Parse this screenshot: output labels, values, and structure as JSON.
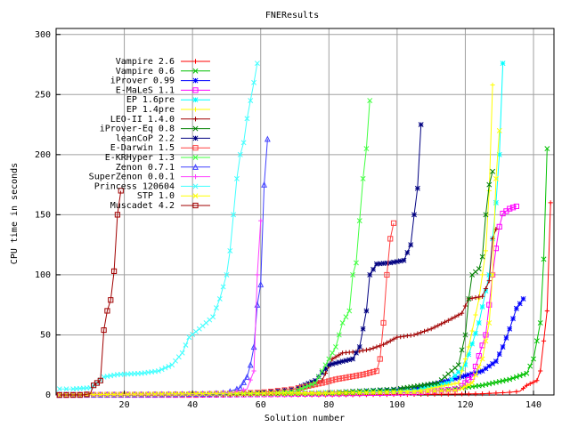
{
  "chart_data": {
    "type": "line",
    "title": "FNEResults",
    "xlabel": "Solution number",
    "ylabel": "CPU time in seconds",
    "xlim": [
      0,
      146
    ],
    "ylim": [
      0,
      305
    ],
    "xticks": [
      20,
      40,
      60,
      80,
      100,
      120,
      140
    ],
    "yticks": [
      0,
      50,
      100,
      150,
      200,
      250,
      300
    ],
    "grid": true,
    "legend_position": "top-left",
    "series": [
      {
        "name": "Vampire 2.6",
        "color": "#ff0000",
        "marker": "plus",
        "points": [
          [
            1,
            0
          ],
          [
            40,
            0
          ],
          [
            80,
            0
          ],
          [
            110,
            0.5
          ],
          [
            125,
            1
          ],
          [
            132,
            2
          ],
          [
            136,
            3
          ],
          [
            138,
            8
          ],
          [
            141,
            12
          ],
          [
            142,
            20
          ],
          [
            143,
            45
          ],
          [
            144,
            70
          ],
          [
            145,
            160
          ]
        ]
      },
      {
        "name": "Vampire 0.6",
        "color": "#00c000",
        "marker": "cross",
        "points": [
          [
            1,
            0
          ],
          [
            40,
            0.5
          ],
          [
            80,
            1
          ],
          [
            110,
            3
          ],
          [
            125,
            8
          ],
          [
            133,
            13
          ],
          [
            138,
            18
          ],
          [
            140,
            30
          ],
          [
            142,
            60
          ],
          [
            143,
            113
          ],
          [
            144,
            205
          ]
        ]
      },
      {
        "name": "iProver 0.99",
        "color": "#0000ff",
        "marker": "star",
        "points": [
          [
            1,
            0
          ],
          [
            40,
            0.5
          ],
          [
            80,
            2
          ],
          [
            105,
            5
          ],
          [
            115,
            12
          ],
          [
            125,
            20
          ],
          [
            129,
            28
          ],
          [
            131,
            40
          ],
          [
            133,
            55
          ],
          [
            135,
            72
          ],
          [
            137,
            80
          ]
        ]
      },
      {
        "name": "E-MaLeS 1.1",
        "color": "#ff00ff",
        "marker": "box",
        "points": [
          [
            1,
            0
          ],
          [
            40,
            0
          ],
          [
            80,
            1
          ],
          [
            105,
            2
          ],
          [
            118,
            5
          ],
          [
            122,
            15
          ],
          [
            126,
            50
          ],
          [
            128,
            100
          ],
          [
            129,
            122
          ],
          [
            130,
            140
          ],
          [
            131,
            151
          ],
          [
            133,
            155
          ],
          [
            135,
            157
          ]
        ]
      },
      {
        "name": "EP 1.6pre",
        "color": "#00ffff",
        "marker": "star",
        "points": [
          [
            1,
            0
          ],
          [
            40,
            0.5
          ],
          [
            80,
            2
          ],
          [
            105,
            4
          ],
          [
            115,
            10
          ],
          [
            120,
            25
          ],
          [
            124,
            60
          ],
          [
            127,
            100
          ],
          [
            129,
            160
          ],
          [
            130,
            200
          ],
          [
            131,
            276
          ]
        ]
      },
      {
        "name": "EP 1.4pre",
        "color": "#ffff00",
        "marker": "plus",
        "points": [
          [
            1,
            0
          ],
          [
            40,
            0.5
          ],
          [
            80,
            1
          ],
          [
            105,
            3
          ],
          [
            118,
            10
          ],
          [
            121,
            40
          ],
          [
            124,
            80
          ],
          [
            126,
            120
          ],
          [
            127,
            170
          ],
          [
            128,
            258
          ]
        ]
      },
      {
        "name": "LEO-II 1.4.0",
        "color": "#a00000",
        "marker": "plus",
        "points": [
          [
            1,
            0
          ],
          [
            50,
            0
          ],
          [
            60,
            1
          ],
          [
            70,
            3
          ],
          [
            78,
            12
          ],
          [
            81,
            30
          ],
          [
            84,
            35
          ],
          [
            88,
            36
          ],
          [
            92,
            38
          ],
          [
            96,
            42
          ],
          [
            100,
            48
          ],
          [
            105,
            50
          ],
          [
            110,
            55
          ],
          [
            115,
            62
          ],
          [
            119,
            68
          ],
          [
            121,
            80
          ],
          [
            125,
            82
          ],
          [
            127,
            95
          ],
          [
            128,
            130
          ],
          [
            129,
            138
          ]
        ]
      },
      {
        "name": "iProver-Eq 0.8",
        "color": "#008000",
        "marker": "cross",
        "points": [
          [
            1,
            0
          ],
          [
            40,
            0.5
          ],
          [
            80,
            2
          ],
          [
            100,
            5
          ],
          [
            112,
            10
          ],
          [
            118,
            25
          ],
          [
            120,
            50
          ],
          [
            121,
            80
          ],
          [
            122,
            100
          ],
          [
            124,
            105
          ],
          [
            125,
            115
          ],
          [
            126,
            150
          ],
          [
            127,
            175
          ],
          [
            128,
            186
          ]
        ]
      },
      {
        "name": "leanCoP 2.2",
        "color": "#000080",
        "marker": "star",
        "points": [
          [
            1,
            0
          ],
          [
            40,
            0.5
          ],
          [
            60,
            2
          ],
          [
            70,
            5
          ],
          [
            76,
            12
          ],
          [
            80,
            25
          ],
          [
            84,
            28
          ],
          [
            87,
            30
          ],
          [
            89,
            40
          ],
          [
            91,
            70
          ],
          [
            92,
            100
          ],
          [
            94,
            109
          ],
          [
            98,
            110
          ],
          [
            102,
            112
          ],
          [
            104,
            125
          ],
          [
            105,
            150
          ],
          [
            106,
            172
          ],
          [
            107,
            225
          ]
        ]
      },
      {
        "name": "E-Darwin 1.5",
        "color": "#ff4040",
        "marker": "box",
        "points": [
          [
            1,
            0
          ],
          [
            40,
            0.5
          ],
          [
            60,
            2
          ],
          [
            70,
            5
          ],
          [
            78,
            10
          ],
          [
            82,
            13
          ],
          [
            86,
            15
          ],
          [
            90,
            17
          ],
          [
            94,
            20
          ],
          [
            95,
            30
          ],
          [
            96,
            60
          ],
          [
            97,
            100
          ],
          [
            98,
            130
          ],
          [
            99,
            143
          ]
        ]
      },
      {
        "name": "E-KRHyper 1.3",
        "color": "#40ff40",
        "marker": "cross",
        "points": [
          [
            1,
            0
          ],
          [
            40,
            0.5
          ],
          [
            60,
            1
          ],
          [
            70,
            3
          ],
          [
            76,
            10
          ],
          [
            79,
            25
          ],
          [
            82,
            40
          ],
          [
            84,
            60
          ],
          [
            86,
            70
          ],
          [
            87,
            100
          ],
          [
            88,
            110
          ],
          [
            90,
            180
          ],
          [
            91,
            205
          ],
          [
            92,
            245
          ]
        ]
      },
      {
        "name": "Zenon 0.7.1",
        "color": "#4040ff",
        "marker": "triangle",
        "points": [
          [
            1,
            0
          ],
          [
            30,
            0.5
          ],
          [
            45,
            1
          ],
          [
            50,
            2
          ],
          [
            54,
            6
          ],
          [
            56,
            15
          ],
          [
            57,
            25
          ],
          [
            58,
            40
          ],
          [
            59,
            75
          ],
          [
            60,
            92
          ],
          [
            61,
            175
          ],
          [
            62,
            213
          ]
        ]
      },
      {
        "name": "SuperZenon 0.0.1",
        "color": "#ff40ff",
        "marker": "plus",
        "points": [
          [
            1,
            0
          ],
          [
            30,
            0.5
          ],
          [
            45,
            1
          ],
          [
            52,
            2
          ],
          [
            56,
            5
          ],
          [
            58,
            20
          ],
          [
            59,
            100
          ],
          [
            60,
            145
          ]
        ]
      },
      {
        "name": "Princess 120604",
        "color": "#40ffff",
        "marker": "cross",
        "points": [
          [
            1,
            5
          ],
          [
            5,
            5
          ],
          [
            10,
            6
          ],
          [
            12,
            10
          ],
          [
            14,
            15
          ],
          [
            18,
            17
          ],
          [
            25,
            18
          ],
          [
            30,
            20
          ],
          [
            34,
            25
          ],
          [
            37,
            35
          ],
          [
            39,
            48
          ],
          [
            42,
            55
          ],
          [
            46,
            65
          ],
          [
            48,
            80
          ],
          [
            50,
            100
          ],
          [
            51,
            120
          ],
          [
            52,
            150
          ],
          [
            53,
            180
          ],
          [
            54,
            200
          ],
          [
            55,
            210
          ],
          [
            56,
            230
          ],
          [
            57,
            245
          ],
          [
            58,
            260
          ],
          [
            59,
            276
          ]
        ]
      },
      {
        "name": "STP 1.0",
        "color": "#ffff00",
        "marker": "cross",
        "points": [
          [
            1,
            0
          ],
          [
            20,
            0.5
          ],
          [
            40,
            1
          ],
          [
            60,
            1.5
          ],
          [
            80,
            2
          ],
          [
            100,
            2.5
          ],
          [
            110,
            3
          ],
          [
            118,
            4
          ],
          [
            122,
            10
          ],
          [
            125,
            30
          ],
          [
            127,
            60
          ],
          [
            128,
            100
          ],
          [
            129,
            180
          ],
          [
            130,
            220
          ]
        ]
      },
      {
        "name": "Muscadet 4.2",
        "color": "#a00000",
        "marker": "box",
        "points": [
          [
            1,
            0
          ],
          [
            5,
            0
          ],
          [
            8,
            0
          ],
          [
            10,
            1
          ],
          [
            11,
            8
          ],
          [
            12,
            10
          ],
          [
            13,
            12
          ],
          [
            14,
            54
          ],
          [
            15,
            70
          ],
          [
            16,
            79
          ],
          [
            17,
            103
          ],
          [
            18,
            150
          ],
          [
            19,
            170
          ]
        ]
      }
    ]
  }
}
